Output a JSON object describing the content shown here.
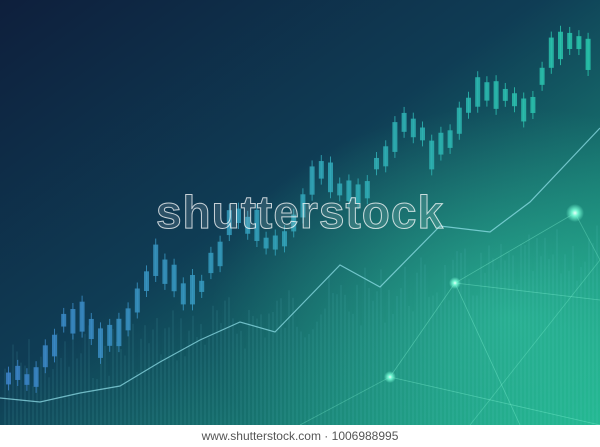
{
  "watermark": "shutterstock",
  "footer": "www.shutterstock.com · 1006988995"
}
